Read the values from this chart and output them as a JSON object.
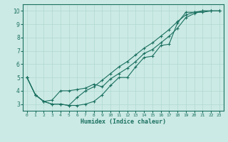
{
  "xlabel": "Humidex (Indice chaleur)",
  "background_color": "#cceae5",
  "grid_color": "#b0d8d0",
  "line_color": "#1a7060",
  "xlim": [
    -0.5,
    23.5
  ],
  "ylim": [
    2.5,
    10.5
  ],
  "xticks": [
    0,
    1,
    2,
    3,
    4,
    5,
    6,
    7,
    8,
    9,
    10,
    11,
    12,
    13,
    14,
    15,
    16,
    17,
    18,
    19,
    20,
    21,
    22,
    23
  ],
  "yticks": [
    3,
    4,
    5,
    6,
    7,
    8,
    9,
    10
  ],
  "line1_x": [
    0,
    1,
    2,
    3,
    4,
    5,
    6,
    7,
    8,
    9,
    10,
    11,
    12,
    13,
    14,
    15,
    16,
    17,
    18,
    19,
    20,
    21,
    22,
    23
  ],
  "line1_y": [
    5.0,
    3.7,
    3.2,
    3.0,
    3.0,
    2.9,
    2.9,
    3.0,
    3.2,
    3.7,
    4.4,
    5.0,
    5.0,
    5.8,
    6.5,
    6.6,
    7.4,
    7.5,
    9.1,
    9.9,
    9.9,
    9.9,
    10.0,
    10.0
  ],
  "line2_x": [
    0,
    1,
    2,
    3,
    4,
    5,
    6,
    7,
    8,
    9,
    10,
    11,
    12,
    13,
    14,
    15,
    16,
    17,
    18,
    19,
    20,
    21,
    22,
    23
  ],
  "line2_y": [
    5.0,
    3.7,
    3.2,
    3.3,
    4.0,
    4.0,
    4.1,
    4.2,
    4.5,
    4.3,
    4.9,
    5.3,
    5.7,
    6.2,
    6.8,
    7.1,
    7.6,
    8.1,
    8.7,
    9.5,
    9.8,
    10.0,
    10.0,
    10.0
  ],
  "line3_x": [
    0,
    1,
    2,
    3,
    4,
    5,
    6,
    7,
    8,
    9,
    10,
    11,
    12,
    13,
    14,
    15,
    16,
    17,
    18,
    19,
    20,
    21,
    22,
    23
  ],
  "line3_y": [
    5.0,
    3.7,
    3.2,
    3.0,
    3.0,
    2.9,
    3.5,
    4.0,
    4.3,
    4.8,
    5.3,
    5.8,
    6.2,
    6.7,
    7.2,
    7.6,
    8.1,
    8.6,
    9.2,
    9.7,
    9.9,
    10.0,
    10.0,
    10.0
  ]
}
